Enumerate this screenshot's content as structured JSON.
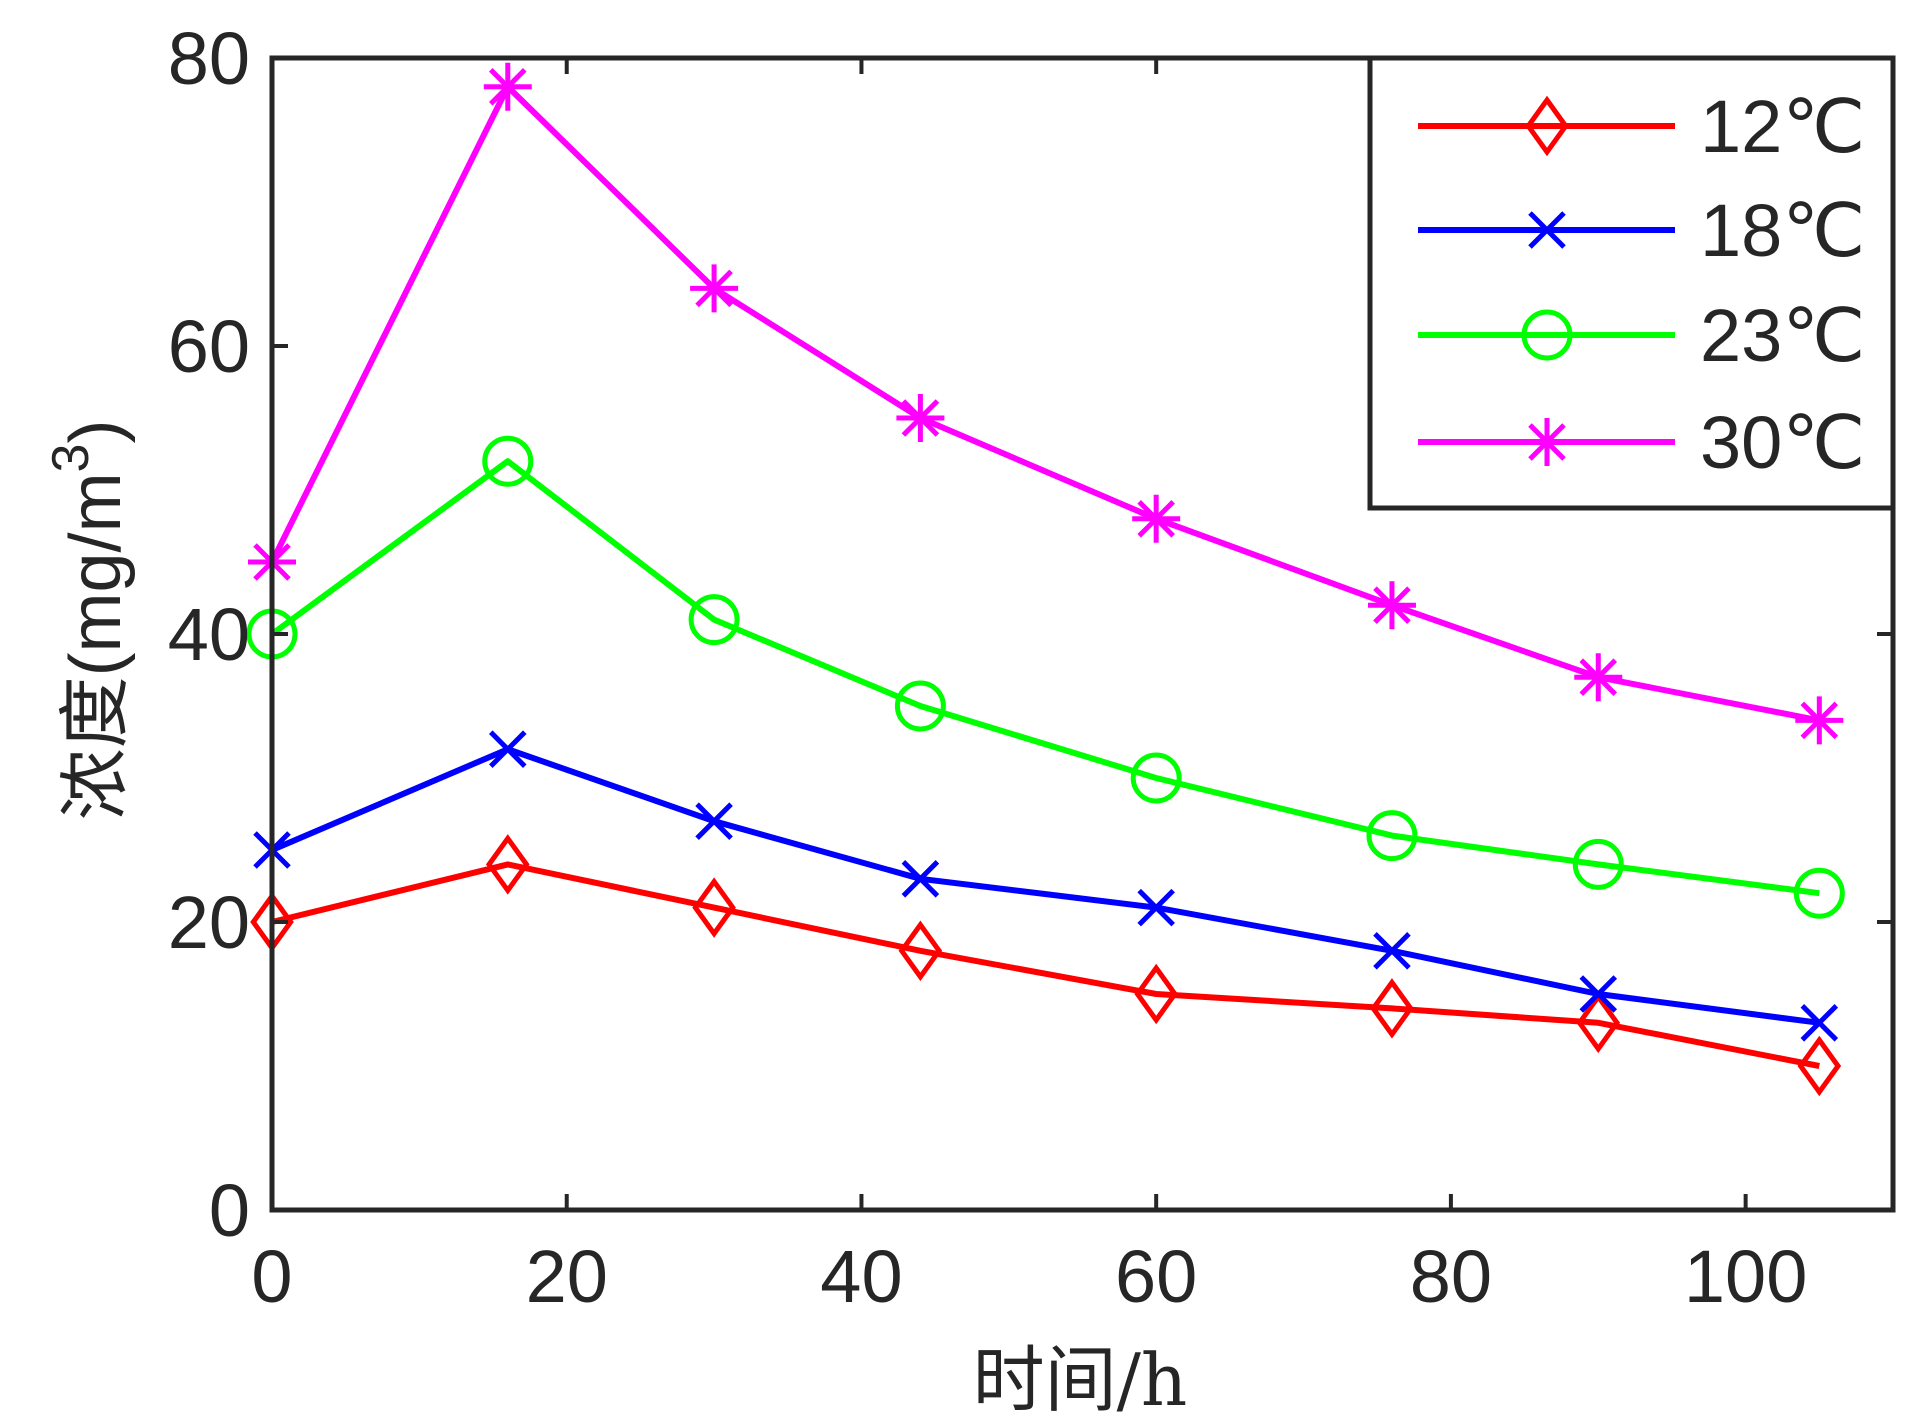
{
  "chart_data": {
    "type": "line",
    "title": "",
    "xlabel": "时间/h",
    "ylabel": {
      "main": "浓度(mg/m",
      "superscript": "3",
      "close": ")"
    },
    "xlim": [
      0,
      110
    ],
    "ylim": [
      0,
      80
    ],
    "xticks": [
      0,
      20,
      40,
      60,
      80,
      100
    ],
    "yticks": [
      0,
      20,
      40,
      60,
      80
    ],
    "xtick_labels": [
      "0",
      "20",
      "40",
      "60",
      "80",
      "100"
    ],
    "ytick_labels": [
      "0",
      "20",
      "40",
      "60",
      "80"
    ],
    "grid": false,
    "legend_position": "top-right",
    "x": [
      0,
      16,
      30,
      44,
      60,
      76,
      90,
      105
    ],
    "series": [
      {
        "name": "12℃",
        "color": "#ff0000",
        "marker": "diamond",
        "values": [
          20,
          24,
          21,
          18,
          15,
          14,
          13,
          10
        ]
      },
      {
        "name": "18℃",
        "color": "#0000ff",
        "marker": "x",
        "values": [
          25,
          32,
          27,
          23,
          21,
          18,
          15,
          13
        ]
      },
      {
        "name": "23℃",
        "color": "#00ff00",
        "marker": "circle",
        "values": [
          40,
          52,
          41,
          35,
          30,
          26,
          24,
          22
        ]
      },
      {
        "name": "30℃",
        "color": "#ff00ff",
        "marker": "asterisk",
        "values": [
          45,
          78,
          64,
          55,
          48,
          42,
          37,
          34
        ]
      }
    ]
  }
}
